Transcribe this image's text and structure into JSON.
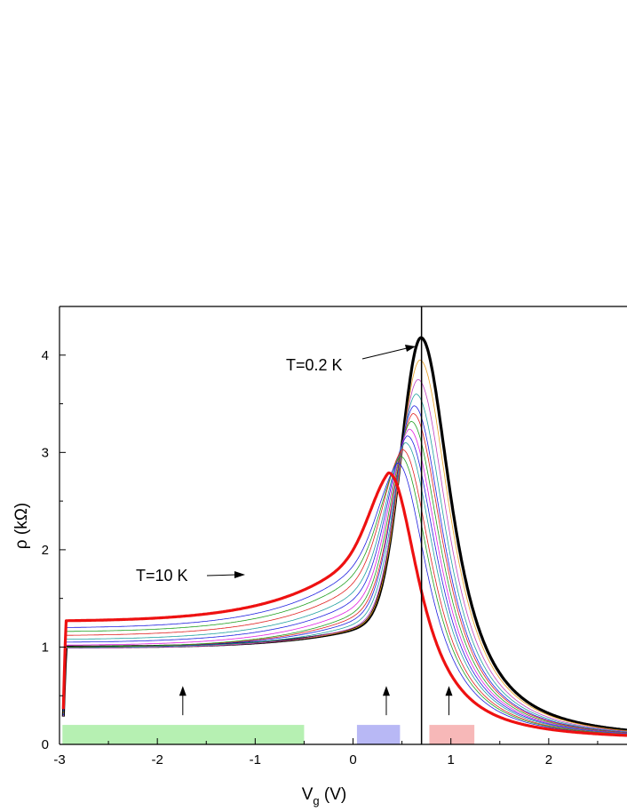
{
  "chart_data": {
    "type": "line",
    "xlabel": "V",
    "xlabel_subscript": "g",
    "xlabel_unit": " (V)",
    "ylabel": "ρ (kΩ)",
    "xlim": [
      -3,
      2.8
    ],
    "ylim": [
      0,
      4.5
    ],
    "xticks": [
      -3,
      -2,
      -1,
      0,
      1,
      2
    ],
    "yticks": [
      0,
      1,
      2,
      3,
      4
    ],
    "grid": false,
    "vertical_line_x": 0.7,
    "annotations": [
      {
        "text": "T=0.2 K",
        "target": [
          0.68,
          4.18
        ]
      },
      {
        "text": "T=10 K",
        "target": [
          -1.0,
          1.75
        ]
      }
    ],
    "region_bars": [
      {
        "x": [
          -2.97,
          -0.5
        ],
        "height": 0.2,
        "color": "#b6f0b2",
        "arrow_x": -1.74
      },
      {
        "x": [
          0.04,
          0.48
        ],
        "height": 0.2,
        "color": "#b8b8f5",
        "arrow_x": 0.34
      },
      {
        "x": [
          0.78,
          1.24
        ],
        "height": 0.2,
        "color": "#f7b8b8",
        "arrow_x": 0.98
      }
    ],
    "arrow_range": [
      0.3,
      0.6
    ],
    "series": [
      {
        "temp": "0.2 K",
        "color": "#000000",
        "width": 3.2,
        "base": 1.0,
        "slope": 0.2,
        "peak_x": 0.69,
        "peak_y": 4.18
      },
      {
        "temp": "",
        "color": "#e8a020",
        "width": 0.8,
        "base": 0.995,
        "slope": 0.21,
        "peak_x": 0.68,
        "peak_y": 3.95
      },
      {
        "temp": "",
        "color": "#c040c0",
        "width": 0.8,
        "base": 0.99,
        "slope": 0.23,
        "peak_x": 0.66,
        "peak_y": 3.75
      },
      {
        "temp": "",
        "color": "#20a0a0",
        "width": 0.8,
        "base": 0.995,
        "slope": 0.26,
        "peak_x": 0.64,
        "peak_y": 3.6
      },
      {
        "temp": "",
        "color": "#2020e0",
        "width": 0.8,
        "base": 1.0,
        "slope": 0.3,
        "peak_x": 0.62,
        "peak_y": 3.48
      },
      {
        "temp": "",
        "color": "#e02020",
        "width": 0.8,
        "base": 1.0,
        "slope": 0.34,
        "peak_x": 0.61,
        "peak_y": 3.4
      },
      {
        "temp": "",
        "color": "#20a020",
        "width": 0.8,
        "base": 1.0,
        "slope": 0.38,
        "peak_x": 0.59,
        "peak_y": 3.32
      },
      {
        "temp": "",
        "color": "#e020e0",
        "width": 0.8,
        "base": 1.02,
        "slope": 0.42,
        "peak_x": 0.57,
        "peak_y": 3.24
      },
      {
        "temp": "",
        "color": "#2020e0",
        "width": 0.8,
        "base": 1.05,
        "slope": 0.47,
        "peak_x": 0.55,
        "peak_y": 3.17
      },
      {
        "temp": "",
        "color": "#20a0a0",
        "width": 0.8,
        "base": 1.08,
        "slope": 0.52,
        "peak_x": 0.53,
        "peak_y": 3.1
      },
      {
        "temp": "",
        "color": "#e02020",
        "width": 0.8,
        "base": 1.12,
        "slope": 0.57,
        "peak_x": 0.5,
        "peak_y": 3.03
      },
      {
        "temp": "",
        "color": "#20a020",
        "width": 0.8,
        "base": 1.16,
        "slope": 0.62,
        "peak_x": 0.48,
        "peak_y": 2.96
      },
      {
        "temp": "",
        "color": "#2020e0",
        "width": 0.8,
        "base": 1.2,
        "slope": 0.67,
        "peak_x": 0.45,
        "peak_y": 2.89
      },
      {
        "temp": "10 K",
        "color": "#ee1111",
        "width": 3.2,
        "base": 1.27,
        "slope": 0.72,
        "peak_x": 0.36,
        "peak_y": 2.79
      }
    ]
  }
}
